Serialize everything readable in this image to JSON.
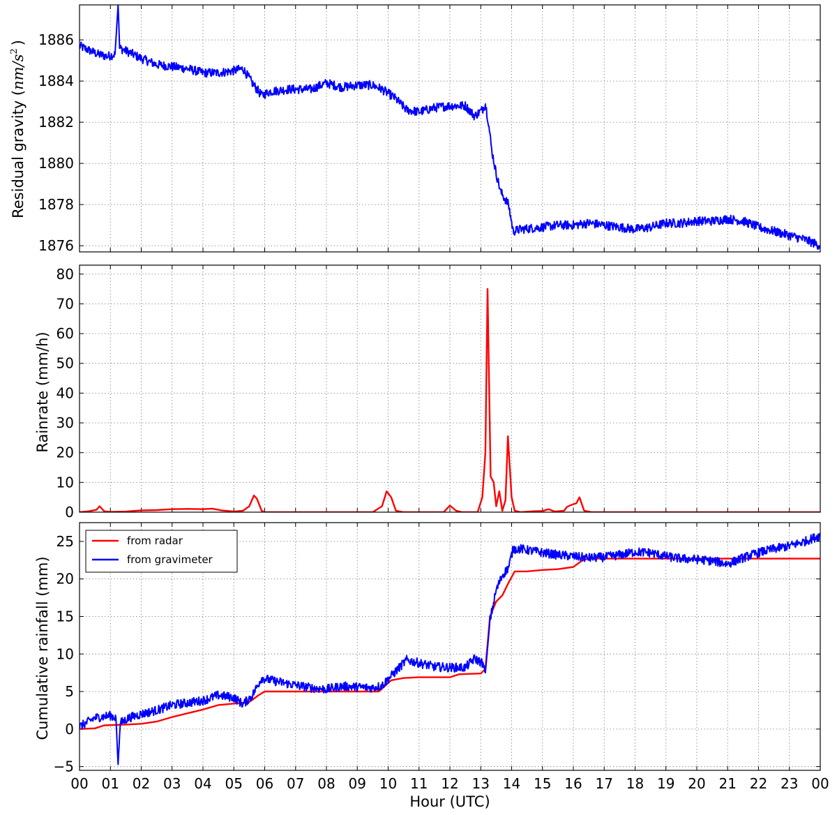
{
  "chart_data": [
    {
      "type": "line",
      "ylabel_text": "Residual gravity (",
      "ylabel_unit": "nm/s",
      "ylabel_exp": "2",
      "ylabel_close": ")",
      "ylim": [
        1875.7,
        1887.7
      ],
      "yticks": [
        1876,
        1878,
        1880,
        1882,
        1884,
        1886
      ],
      "grid": true,
      "series": [
        {
          "color": "#0000ff",
          "values": [
            [
              0,
              1885.7
            ],
            [
              0.3,
              1885.5
            ],
            [
              0.6,
              1885.3
            ],
            [
              0.9,
              1885.2
            ],
            [
              1.15,
              1885.3
            ],
            [
              1.25,
              1887.7
            ],
            [
              1.3,
              1885.6
            ],
            [
              1.6,
              1885.4
            ],
            [
              2.0,
              1885.1
            ],
            [
              2.5,
              1884.8
            ],
            [
              3.0,
              1884.7
            ],
            [
              3.5,
              1884.6
            ],
            [
              4.0,
              1884.4
            ],
            [
              4.5,
              1884.4
            ],
            [
              5.0,
              1884.5
            ],
            [
              5.3,
              1884.6
            ],
            [
              5.6,
              1883.9
            ],
            [
              5.9,
              1883.3
            ],
            [
              6.2,
              1883.5
            ],
            [
              6.8,
              1883.6
            ],
            [
              7.5,
              1883.6
            ],
            [
              8.0,
              1883.9
            ],
            [
              8.5,
              1883.7
            ],
            [
              9.0,
              1883.8
            ],
            [
              9.5,
              1883.8
            ],
            [
              9.8,
              1883.6
            ],
            [
              10.2,
              1883.2
            ],
            [
              10.6,
              1882.6
            ],
            [
              11.0,
              1882.5
            ],
            [
              11.5,
              1882.7
            ],
            [
              12.0,
              1882.8
            ],
            [
              12.5,
              1882.8
            ],
            [
              12.8,
              1882.3
            ],
            [
              13.05,
              1882.6
            ],
            [
              13.15,
              1882.9
            ],
            [
              13.25,
              1882.0
            ],
            [
              13.35,
              1880.7
            ],
            [
              13.5,
              1879.5
            ],
            [
              13.65,
              1878.6
            ],
            [
              13.9,
              1878.0
            ],
            [
              14.05,
              1876.7
            ],
            [
              14.3,
              1876.8
            ],
            [
              15.0,
              1876.9
            ],
            [
              15.5,
              1877.0
            ],
            [
              16.0,
              1877.0
            ],
            [
              16.5,
              1877.1
            ],
            [
              17.0,
              1877.0
            ],
            [
              17.5,
              1876.9
            ],
            [
              18.0,
              1876.8
            ],
            [
              18.5,
              1876.9
            ],
            [
              19.0,
              1877.1
            ],
            [
              19.5,
              1877.1
            ],
            [
              20.0,
              1877.2
            ],
            [
              20.5,
              1877.2
            ],
            [
              21.0,
              1877.3
            ],
            [
              21.5,
              1877.2
            ],
            [
              22.0,
              1876.9
            ],
            [
              22.5,
              1876.7
            ],
            [
              23.0,
              1876.5
            ],
            [
              23.5,
              1876.3
            ],
            [
              24.0,
              1876.0
            ]
          ]
        }
      ]
    },
    {
      "type": "line",
      "ylabel": "Rainrate (mm/h)",
      "ylim": [
        0,
        83
      ],
      "yticks": [
        0,
        10,
        20,
        30,
        40,
        50,
        60,
        70,
        80
      ],
      "grid": true,
      "series": [
        {
          "color": "#ff0000",
          "values": [
            [
              0,
              0
            ],
            [
              0.3,
              0.3
            ],
            [
              0.55,
              0.8
            ],
            [
              0.65,
              2.0
            ],
            [
              0.8,
              0.3
            ],
            [
              1.0,
              0.1
            ],
            [
              1.5,
              0.2
            ],
            [
              2.0,
              0.6
            ],
            [
              2.5,
              0.7
            ],
            [
              3.0,
              1.0
            ],
            [
              3.5,
              1.1
            ],
            [
              4.0,
              1.0
            ],
            [
              4.3,
              1.2
            ],
            [
              4.6,
              0.6
            ],
            [
              5.0,
              0.2
            ],
            [
              5.3,
              0.5
            ],
            [
              5.5,
              2.0
            ],
            [
              5.65,
              5.6
            ],
            [
              5.75,
              4.5
            ],
            [
              5.9,
              0.5
            ],
            [
              6.0,
              0
            ],
            [
              6.5,
              0
            ],
            [
              7.0,
              0
            ],
            [
              8.0,
              0
            ],
            [
              9.5,
              0
            ],
            [
              9.8,
              2.0
            ],
            [
              9.95,
              7.0
            ],
            [
              10.1,
              5.0
            ],
            [
              10.25,
              0.5
            ],
            [
              10.5,
              0
            ],
            [
              11.0,
              0
            ],
            [
              11.8,
              0
            ],
            [
              12.0,
              2.2
            ],
            [
              12.2,
              0.5
            ],
            [
              12.4,
              0
            ],
            [
              12.9,
              0
            ],
            [
              13.05,
              5.0
            ],
            [
              13.15,
              20.0
            ],
            [
              13.22,
              75.0
            ],
            [
              13.32,
              12.0
            ],
            [
              13.42,
              10.0
            ],
            [
              13.5,
              2.0
            ],
            [
              13.6,
              7.0
            ],
            [
              13.7,
              0.5
            ],
            [
              13.8,
              4.0
            ],
            [
              13.88,
              25.5
            ],
            [
              14.0,
              5.0
            ],
            [
              14.1,
              0.5
            ],
            [
              14.3,
              0
            ],
            [
              14.7,
              0.3
            ],
            [
              15.0,
              0.4
            ],
            [
              15.2,
              1.0
            ],
            [
              15.4,
              0.2
            ],
            [
              15.7,
              0.5
            ],
            [
              15.8,
              1.8
            ],
            [
              15.95,
              2.5
            ],
            [
              16.1,
              3.0
            ],
            [
              16.2,
              5.0
            ],
            [
              16.35,
              0.5
            ],
            [
              16.6,
              0
            ],
            [
              24.0,
              0
            ]
          ]
        }
      ]
    },
    {
      "type": "line",
      "ylabel": "Cumulative rainfall (mm)",
      "ylim": [
        -5.5,
        27.5
      ],
      "yticks": [
        -5,
        0,
        5,
        10,
        15,
        20,
        25
      ],
      "xlabel": "Hour (UTC)",
      "xticks": [
        "00",
        "01",
        "02",
        "03",
        "04",
        "05",
        "06",
        "07",
        "08",
        "09",
        "10",
        "11",
        "12",
        "13",
        "14",
        "15",
        "16",
        "17",
        "18",
        "19",
        "20",
        "21",
        "22",
        "23",
        "00"
      ],
      "xlim": [
        0,
        24
      ],
      "grid": true,
      "legend_position": "top-left",
      "series": [
        {
          "name": "from radar",
          "color": "#ff0000",
          "values": [
            [
              0,
              0
            ],
            [
              0.5,
              0.1
            ],
            [
              0.8,
              0.5
            ],
            [
              1.5,
              0.6
            ],
            [
              2.0,
              0.7
            ],
            [
              2.5,
              1.0
            ],
            [
              3.0,
              1.6
            ],
            [
              3.5,
              2.1
            ],
            [
              4.0,
              2.6
            ],
            [
              4.5,
              3.2
            ],
            [
              5.0,
              3.4
            ],
            [
              5.5,
              3.6
            ],
            [
              5.8,
              4.5
            ],
            [
              6.0,
              5.0
            ],
            [
              7.0,
              5.0
            ],
            [
              8.0,
              5.0
            ],
            [
              9.0,
              5.0
            ],
            [
              9.7,
              5.0
            ],
            [
              10.1,
              6.5
            ],
            [
              10.5,
              6.8
            ],
            [
              11.0,
              6.9
            ],
            [
              12.0,
              6.9
            ],
            [
              12.3,
              7.3
            ],
            [
              13.0,
              7.4
            ],
            [
              13.15,
              8.0
            ],
            [
              13.3,
              15.0
            ],
            [
              13.5,
              17.0
            ],
            [
              13.7,
              17.8
            ],
            [
              13.9,
              19.5
            ],
            [
              14.1,
              21.0
            ],
            [
              14.5,
              21.0
            ],
            [
              15.0,
              21.2
            ],
            [
              15.5,
              21.3
            ],
            [
              16.0,
              21.6
            ],
            [
              16.3,
              22.5
            ],
            [
              16.5,
              22.7
            ],
            [
              24.0,
              22.7
            ]
          ]
        },
        {
          "name": "from gravimeter",
          "color": "#0000ff",
          "values": [
            [
              0,
              0.3
            ],
            [
              0.5,
              1.5
            ],
            [
              1.0,
              1.8
            ],
            [
              1.18,
              1.5
            ],
            [
              1.25,
              -4.7
            ],
            [
              1.32,
              0.8
            ],
            [
              1.6,
              1.5
            ],
            [
              2.0,
              2.0
            ],
            [
              2.5,
              2.5
            ],
            [
              3.0,
              3.2
            ],
            [
              3.5,
              3.5
            ],
            [
              4.0,
              3.8
            ],
            [
              4.5,
              4.5
            ],
            [
              5.0,
              4.2
            ],
            [
              5.3,
              3.3
            ],
            [
              5.6,
              4.5
            ],
            [
              5.9,
              6.8
            ],
            [
              6.2,
              6.5
            ],
            [
              6.8,
              6.0
            ],
            [
              7.5,
              5.5
            ],
            [
              8.0,
              5.3
            ],
            [
              8.5,
              5.7
            ],
            [
              9.0,
              5.6
            ],
            [
              9.5,
              5.5
            ],
            [
              9.8,
              5.8
            ],
            [
              10.2,
              7.5
            ],
            [
              10.6,
              9.2
            ],
            [
              11.0,
              8.8
            ],
            [
              11.5,
              8.3
            ],
            [
              12.0,
              8.2
            ],
            [
              12.5,
              8.2
            ],
            [
              12.8,
              9.4
            ],
            [
              13.05,
              8.8
            ],
            [
              13.15,
              7.5
            ],
            [
              13.3,
              14.5
            ],
            [
              13.5,
              18.5
            ],
            [
              13.7,
              20.5
            ],
            [
              13.9,
              21.5
            ],
            [
              14.05,
              24.0
            ],
            [
              14.3,
              24.0
            ],
            [
              15.0,
              23.5
            ],
            [
              15.5,
              23.2
            ],
            [
              16.0,
              23.0
            ],
            [
              16.5,
              22.8
            ],
            [
              17.0,
              22.9
            ],
            [
              17.5,
              23.2
            ],
            [
              18.0,
              23.6
            ],
            [
              18.5,
              23.5
            ],
            [
              19.0,
              23.0
            ],
            [
              19.5,
              22.7
            ],
            [
              20.0,
              22.6
            ],
            [
              20.5,
              22.4
            ],
            [
              21.0,
              22.0
            ],
            [
              21.5,
              22.8
            ],
            [
              22.0,
              23.5
            ],
            [
              22.5,
              24.0
            ],
            [
              23.0,
              24.4
            ],
            [
              23.5,
              25.0
            ],
            [
              24.0,
              25.8
            ]
          ]
        }
      ]
    }
  ]
}
